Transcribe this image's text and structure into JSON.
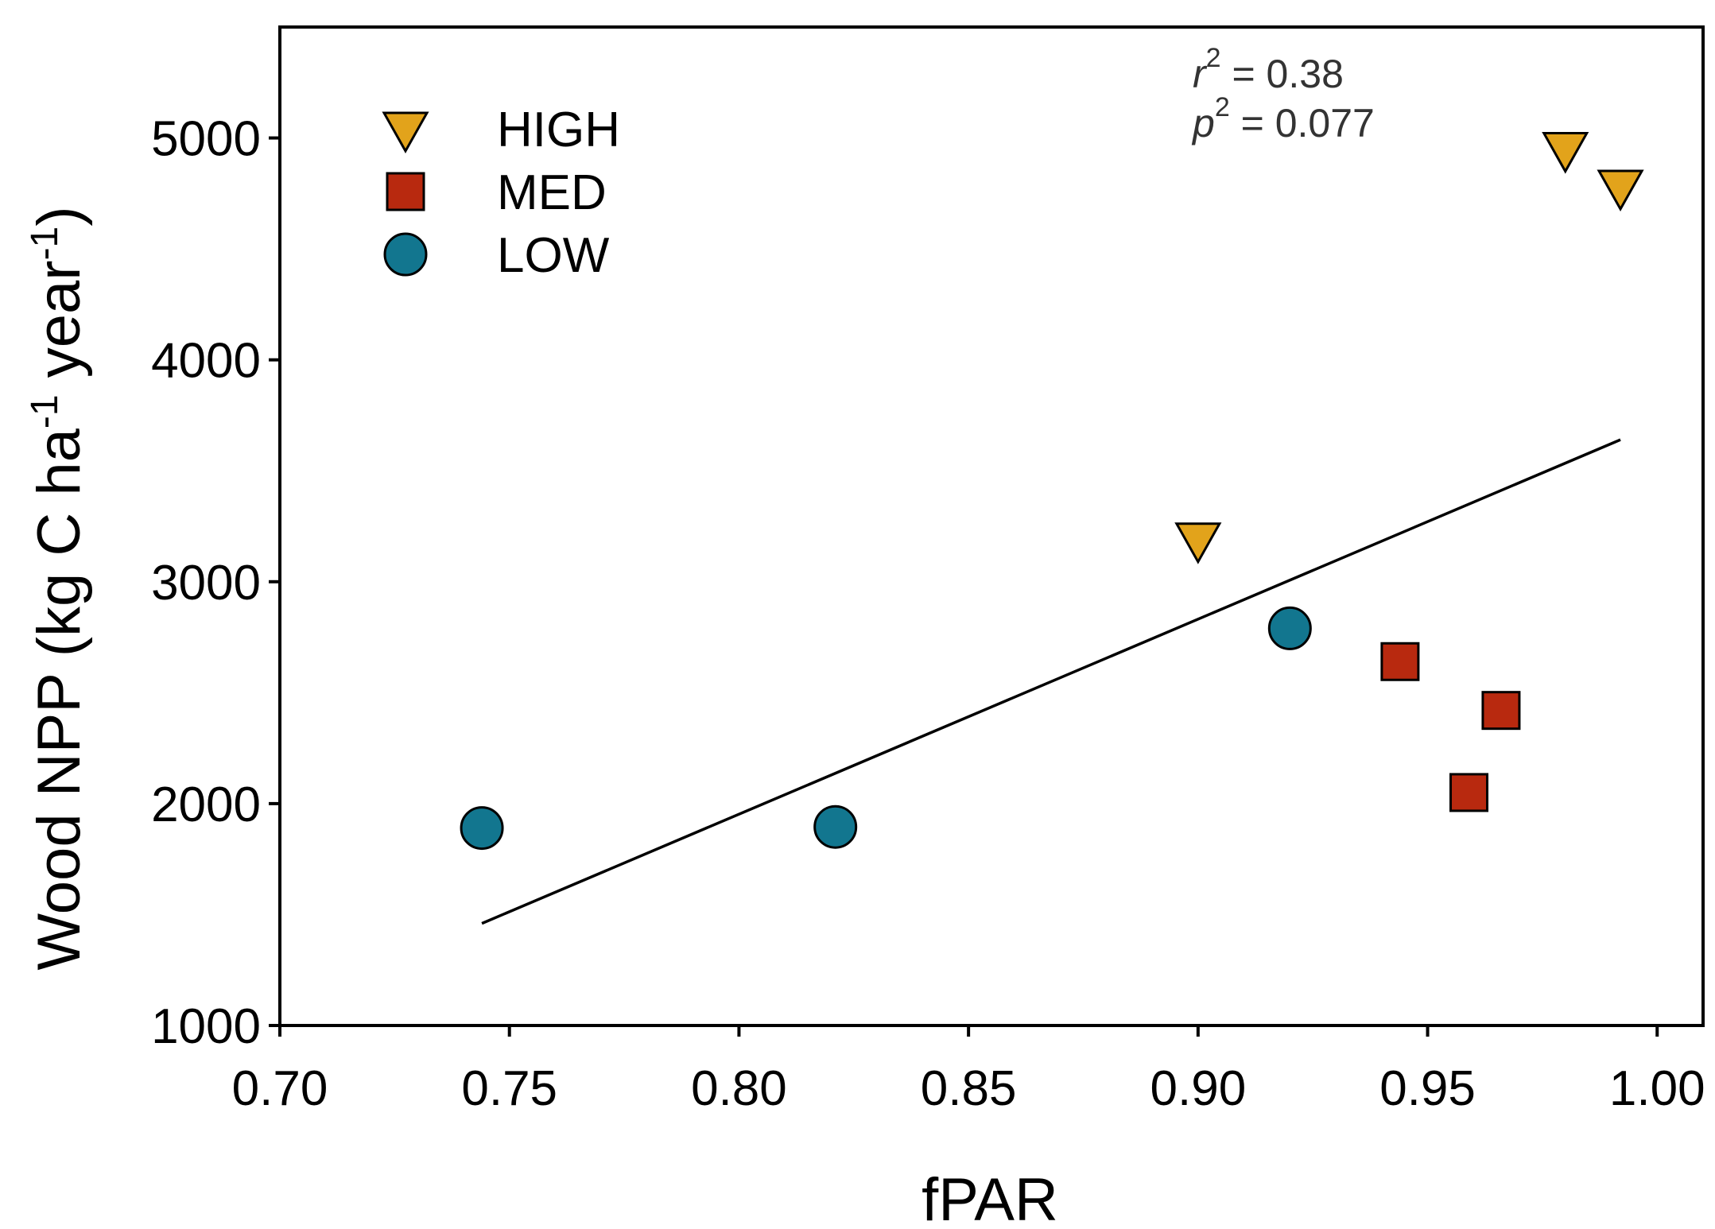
{
  "chart_data": {
    "type": "scatter",
    "title": "",
    "xlabel": "fPAR",
    "ylabel": {
      "main": "Wood NPP (kg C ha",
      "sup1": "-1",
      "mid": " year",
      "sup2": "-1",
      "end": ")"
    },
    "xlim": [
      0.7,
      1.01
    ],
    "ylim": [
      1000,
      5500
    ],
    "x_ticks": [
      0.7,
      0.75,
      0.8,
      0.85,
      0.9,
      0.95,
      1.0
    ],
    "x_tick_labels": [
      "0.70",
      "0.75",
      "0.80",
      "0.85",
      "0.90",
      "0.95",
      "1.00"
    ],
    "y_ticks": [
      1000,
      2000,
      3000,
      4000,
      5000
    ],
    "y_tick_labels": [
      "1000",
      "2000",
      "3000",
      "4000",
      "5000"
    ],
    "grid": false,
    "legend_position": "top-left",
    "series": [
      {
        "name": "HIGH",
        "marker": "triangle-down",
        "color": "#E2A31B",
        "points": [
          {
            "x": 0.9,
            "y": 3190
          },
          {
            "x": 0.98,
            "y": 4950
          },
          {
            "x": 0.992,
            "y": 4780
          }
        ]
      },
      {
        "name": "MED",
        "marker": "square",
        "color": "#B8290F",
        "points": [
          {
            "x": 0.944,
            "y": 2640
          },
          {
            "x": 0.959,
            "y": 2050
          },
          {
            "x": 0.966,
            "y": 2420
          }
        ]
      },
      {
        "name": "LOW",
        "marker": "circle",
        "color": "#12768F",
        "points": [
          {
            "x": 0.744,
            "y": 1890
          },
          {
            "x": 0.821,
            "y": 1895
          },
          {
            "x": 0.92,
            "y": 2790
          }
        ]
      }
    ],
    "regression_line": {
      "x": [
        0.744,
        0.992
      ],
      "y": [
        1460,
        3640
      ]
    },
    "annotations": {
      "r2": {
        "symbol": "r",
        "sup": "2",
        "text": " = 0.38"
      },
      "p2": {
        "symbol": "p",
        "sup": "2",
        "text": " = 0.077"
      }
    }
  }
}
